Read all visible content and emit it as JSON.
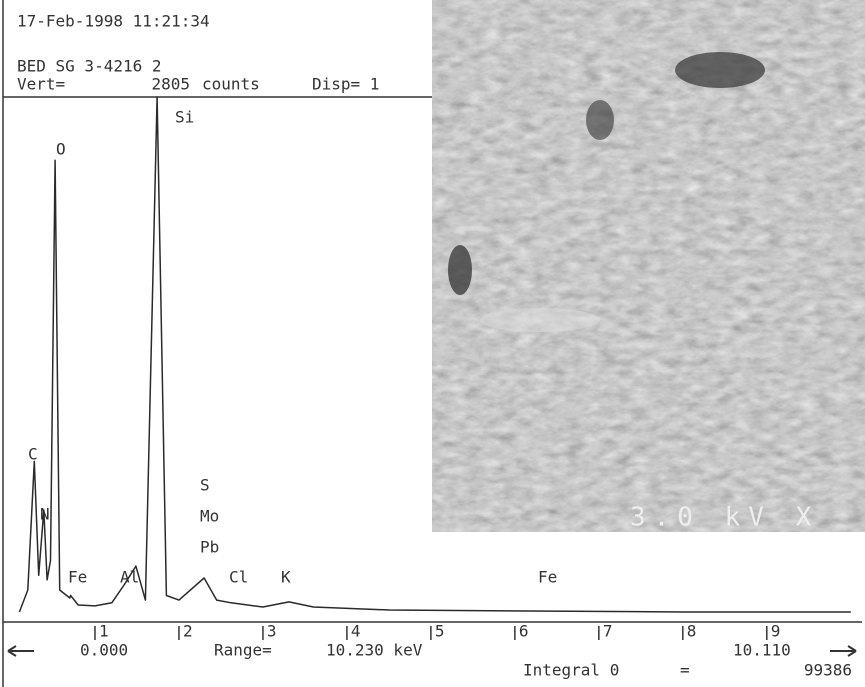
{
  "chart_data": {
    "type": "line",
    "header": {
      "timestamp": "17-Feb-1998 11:21:34",
      "sample": "BED SG 3-4216 2",
      "vert_label": "Vert=",
      "units": "counts",
      "disp": "Disp= 1"
    },
    "peak_labels": [
      "C",
      "N",
      "O",
      "Fe",
      "Al",
      "Si",
      "S",
      "Mo",
      "Pb",
      "Cl",
      "K",
      "Fe"
    ],
    "x": [
      0.1,
      0.2,
      0.277,
      0.33,
      0.39,
      0.43,
      0.47,
      0.525,
      0.58,
      0.7,
      0.71,
      0.8,
      1.0,
      1.2,
      1.35,
      1.487,
      1.6,
      1.74,
      1.85,
      2.0,
      2.3,
      2.45,
      2.62,
      3.0,
      3.31,
      3.6,
      4.5,
      6.4,
      8.0,
      10.0
    ],
    "values": [
      0,
      120,
      820,
      200,
      555,
      175,
      280,
      2460,
      120,
      76,
      90,
      38,
      33,
      50,
      150,
      250,
      65,
      2805,
      90,
      65,
      185,
      65,
      50,
      27,
      55,
      27,
      11,
      5,
      0,
      0
    ],
    "color": "#2a2a2a",
    "xlim": [
      0,
      10.11
    ],
    "xticks": [
      1,
      2,
      3,
      4,
      5,
      6,
      7,
      8,
      9
    ],
    "ylim": [
      0,
      2805
    ],
    "footer": {
      "left_value": "0.000",
      "range_label": "Range=",
      "range": "10.230 keV",
      "right_value": "10.110",
      "integral_label": "Integral 0",
      "equals": "=",
      "integral": "99386"
    }
  },
  "image": {
    "label": "3.0 kV X"
  }
}
